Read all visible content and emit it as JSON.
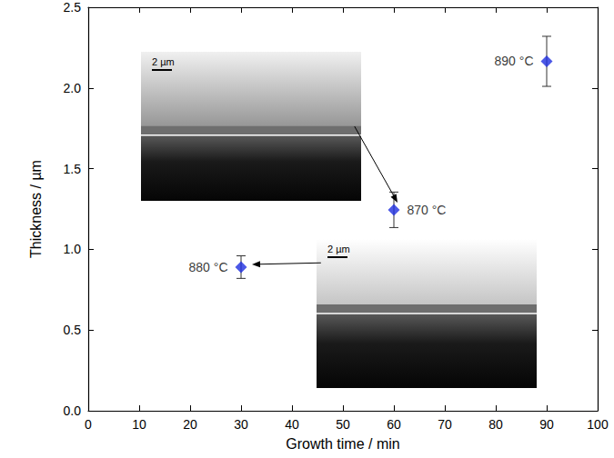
{
  "chart_data": {
    "type": "scatter",
    "xlabel": "Growth time / min",
    "ylabel": "Thickness / µm",
    "x": [
      30,
      60,
      90
    ],
    "values": [
      0.89,
      1.245,
      2.165
    ],
    "errors": [
      0.07,
      0.11,
      0.155
    ],
    "point_labels": [
      "880 °C",
      "870 °C",
      "890 °C"
    ],
    "color": "#1e2ee0",
    "marker": "diamond",
    "xlim": [
      0,
      100
    ],
    "xticks": [
      0,
      10,
      20,
      30,
      40,
      50,
      60,
      70,
      80,
      90,
      100
    ],
    "ylim": [
      0,
      2.5
    ],
    "yticks": [
      {
        "value": 0,
        "label": "0.0"
      },
      0.5,
      {
        "value": 1,
        "label": "1.0"
      },
      1.5,
      {
        "value": 2,
        "label": "2.0"
      },
      2.5
    ],
    "grid": false,
    "insets": [
      {
        "scale_bar": "2 µm",
        "point": 1
      },
      {
        "scale_bar": "2 µm",
        "point": 0
      }
    ]
  }
}
